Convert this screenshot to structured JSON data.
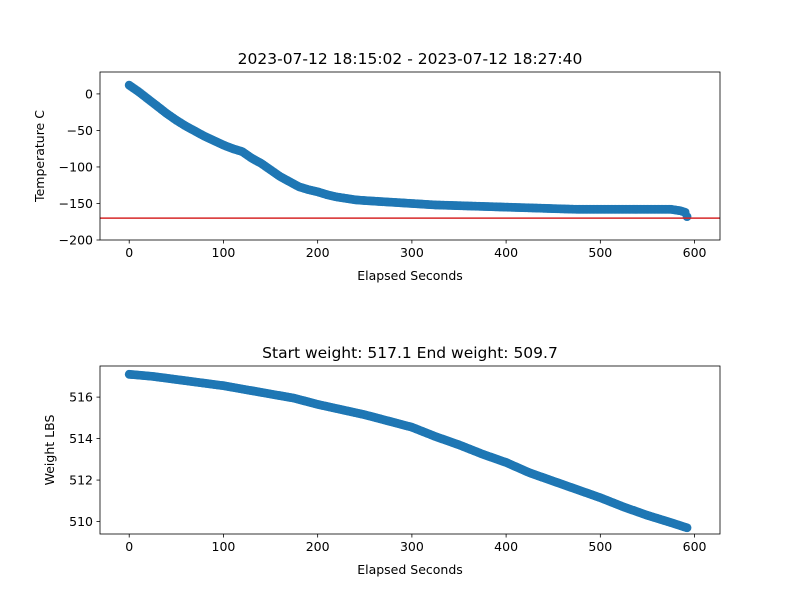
{
  "chart_data": [
    {
      "type": "scatter",
      "title": "2023-07-12 18:15:02 - 2023-07-12 18:27:40",
      "xlabel": "Elapsed Seconds",
      "ylabel": "Temperature C",
      "xlim": [
        -31,
        627
      ],
      "ylim": [
        -200,
        30
      ],
      "xticks": [
        0,
        100,
        200,
        300,
        400,
        500,
        600
      ],
      "yticks": [
        0,
        -50,
        -100,
        -150,
        -200
      ],
      "point_color": "#1f77b4",
      "hline": {
        "y": -170,
        "color": "#d62728"
      },
      "series": [
        {
          "x": [
            0,
            10,
            20,
            30,
            40,
            50,
            60,
            70,
            80,
            90,
            100,
            110,
            120,
            130,
            140,
            150,
            160,
            170,
            180,
            190,
            200,
            210,
            220,
            230,
            240,
            250,
            275,
            300,
            325,
            350,
            375,
            400,
            425,
            450,
            475,
            500,
            525,
            550,
            575,
            585,
            590,
            592
          ],
          "y": [
            12,
            3,
            -7,
            -17,
            -27,
            -36,
            -44,
            -51,
            -58,
            -64,
            -70,
            -75,
            -79,
            -88,
            -95,
            -104,
            -113,
            -120,
            -127,
            -131,
            -134,
            -138,
            -141,
            -143,
            -145,
            -146,
            -148,
            -150,
            -152,
            -153,
            -154,
            -155,
            -156,
            -157,
            -158,
            -158,
            -158,
            -158,
            -158,
            -160,
            -162,
            -168
          ]
        }
      ]
    },
    {
      "type": "scatter",
      "title": "Start weight: 517.1 End weight: 509.7",
      "xlabel": "Elapsed Seconds",
      "ylabel": "Weight LBS",
      "xlim": [
        -31,
        627
      ],
      "ylim": [
        509.4,
        517.5
      ],
      "xticks": [
        0,
        100,
        200,
        300,
        400,
        500,
        600
      ],
      "yticks": [
        510,
        512,
        514,
        516
      ],
      "point_color": "#1f77b4",
      "series": [
        {
          "x": [
            0,
            25,
            50,
            75,
            100,
            125,
            150,
            175,
            200,
            225,
            250,
            275,
            300,
            325,
            350,
            375,
            400,
            425,
            450,
            475,
            500,
            525,
            550,
            575,
            592
          ],
          "y": [
            517.1,
            517.0,
            516.85,
            516.7,
            516.55,
            516.35,
            516.15,
            515.95,
            515.65,
            515.4,
            515.15,
            514.85,
            514.55,
            514.1,
            513.7,
            513.25,
            512.85,
            512.35,
            511.95,
            511.55,
            511.15,
            510.7,
            510.3,
            509.95,
            509.7
          ]
        }
      ]
    }
  ]
}
